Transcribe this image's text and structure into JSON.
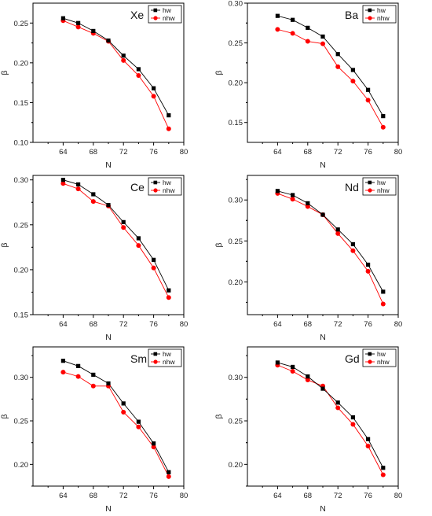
{
  "chart_data": [
    {
      "type": "line",
      "title": "Xe",
      "xlabel": "N",
      "ylabel": "β",
      "xlim": [
        60,
        80
      ],
      "ylim": [
        0.1,
        0.275
      ],
      "xticks": [
        64,
        68,
        72,
        76,
        80
      ],
      "xtick_labels": [
        "64",
        "68",
        "72",
        "76",
        "80"
      ],
      "yticks": [
        0.1,
        0.15,
        0.2,
        0.25
      ],
      "ytick_labels": [
        "0.10",
        "0.15",
        "0.20",
        "0.25"
      ],
      "x": [
        64,
        66,
        68,
        70,
        72,
        74,
        76,
        78
      ],
      "series": [
        {
          "name": "hw",
          "marker": "square",
          "color": "#000000",
          "values": [
            0.256,
            0.25,
            0.24,
            0.228,
            0.209,
            0.192,
            0.168,
            0.134
          ]
        },
        {
          "name": "nhw",
          "marker": "circle",
          "color": "#ff0000",
          "values": [
            0.253,
            0.245,
            0.237,
            0.227,
            0.203,
            0.184,
            0.158,
            0.117
          ]
        }
      ],
      "legend": "top-right",
      "grid": false
    },
    {
      "type": "line",
      "title": "Ba",
      "xlabel": "N",
      "ylabel": "β",
      "xlim": [
        60,
        80
      ],
      "ylim": [
        0.125,
        0.3
      ],
      "xticks": [
        64,
        68,
        72,
        76,
        80
      ],
      "xtick_labels": [
        "64",
        "68",
        "72",
        "76",
        "80"
      ],
      "yticks": [
        0.15,
        0.2,
        0.25,
        0.3
      ],
      "ytick_labels": [
        "0.15",
        "0.20",
        "0.25",
        "0.30"
      ],
      "x": [
        64,
        66,
        68,
        70,
        72,
        74,
        76,
        78
      ],
      "series": [
        {
          "name": "hw",
          "marker": "square",
          "color": "#000000",
          "values": [
            0.284,
            0.279,
            0.269,
            0.258,
            0.236,
            0.216,
            0.191,
            0.158
          ]
        },
        {
          "name": "nhw",
          "marker": "circle",
          "color": "#ff0000",
          "values": [
            0.267,
            0.262,
            0.252,
            0.249,
            0.22,
            0.202,
            0.178,
            0.144
          ]
        }
      ],
      "legend": "top-right",
      "grid": false
    },
    {
      "type": "line",
      "title": "Ce",
      "xlabel": "N",
      "ylabel": "β",
      "xlim": [
        60,
        80
      ],
      "ylim": [
        0.15,
        0.305
      ],
      "xticks": [
        64,
        68,
        72,
        76,
        80
      ],
      "xtick_labels": [
        "64",
        "68",
        "72",
        "76",
        "80"
      ],
      "yticks": [
        0.15,
        0.2,
        0.25,
        0.3
      ],
      "ytick_labels": [
        "0.15",
        "0.20",
        "0.25",
        "0.30"
      ],
      "x": [
        64,
        66,
        68,
        70,
        72,
        74,
        76,
        78
      ],
      "series": [
        {
          "name": "hw",
          "marker": "square",
          "color": "#000000",
          "values": [
            0.3,
            0.295,
            0.284,
            0.272,
            0.253,
            0.235,
            0.211,
            0.177
          ]
        },
        {
          "name": "nhw",
          "marker": "circle",
          "color": "#ff0000",
          "values": [
            0.296,
            0.29,
            0.276,
            0.271,
            0.247,
            0.227,
            0.202,
            0.169
          ]
        }
      ],
      "legend": "top-right",
      "grid": false
    },
    {
      "type": "line",
      "title": "Nd",
      "xlabel": "N",
      "ylabel": "β",
      "xlim": [
        60,
        80
      ],
      "ylim": [
        0.16,
        0.33
      ],
      "xticks": [
        64,
        68,
        72,
        76,
        80
      ],
      "xtick_labels": [
        "64",
        "68",
        "72",
        "76",
        "80"
      ],
      "yticks": [
        0.2,
        0.25,
        0.3
      ],
      "ytick_labels": [
        "0.20",
        "0.25",
        "0.30"
      ],
      "x": [
        64,
        66,
        68,
        70,
        72,
        74,
        76,
        78
      ],
      "series": [
        {
          "name": "hw",
          "marker": "square",
          "color": "#000000",
          "values": [
            0.311,
            0.306,
            0.296,
            0.282,
            0.264,
            0.246,
            0.221,
            0.188
          ]
        },
        {
          "name": "nhw",
          "marker": "circle",
          "color": "#ff0000",
          "values": [
            0.308,
            0.301,
            0.292,
            0.282,
            0.259,
            0.238,
            0.213,
            0.173
          ]
        }
      ],
      "legend": "top-right",
      "grid": false
    },
    {
      "type": "line",
      "title": "Sm",
      "xlabel": "N",
      "ylabel": "β",
      "xlim": [
        60,
        80
      ],
      "ylim": [
        0.175,
        0.335
      ],
      "xticks": [
        64,
        68,
        72,
        76,
        80
      ],
      "xtick_labels": [
        "64",
        "68",
        "72",
        "76",
        "80"
      ],
      "yticks": [
        0.2,
        0.25,
        0.3
      ],
      "ytick_labels": [
        "0.20",
        "0.25",
        "0.30"
      ],
      "x": [
        64,
        66,
        68,
        70,
        72,
        74,
        76,
        78
      ],
      "series": [
        {
          "name": "hw",
          "marker": "square",
          "color": "#000000",
          "values": [
            0.319,
            0.313,
            0.303,
            0.293,
            0.27,
            0.249,
            0.224,
            0.191
          ]
        },
        {
          "name": "nhw",
          "marker": "circle",
          "color": "#ff0000",
          "values": [
            0.306,
            0.301,
            0.29,
            0.29,
            0.26,
            0.243,
            0.22,
            0.186
          ]
        }
      ],
      "legend": "top-right",
      "grid": false
    },
    {
      "type": "line",
      "title": "Gd",
      "xlabel": "N",
      "ylabel": "β",
      "xlim": [
        60,
        80
      ],
      "ylim": [
        0.175,
        0.335
      ],
      "xticks": [
        64,
        68,
        72,
        76,
        80
      ],
      "xtick_labels": [
        "64",
        "68",
        "72",
        "76",
        "80"
      ],
      "yticks": [
        0.2,
        0.25,
        0.3
      ],
      "ytick_labels": [
        "0.20",
        "0.25",
        "0.30"
      ],
      "x": [
        64,
        66,
        68,
        70,
        72,
        74,
        76,
        78
      ],
      "series": [
        {
          "name": "hw",
          "marker": "square",
          "color": "#000000",
          "values": [
            0.317,
            0.312,
            0.301,
            0.287,
            0.271,
            0.254,
            0.229,
            0.196
          ]
        },
        {
          "name": "nhw",
          "marker": "circle",
          "color": "#ff0000",
          "values": [
            0.314,
            0.307,
            0.297,
            0.29,
            0.265,
            0.246,
            0.221,
            0.188
          ]
        }
      ],
      "legend": "top-right",
      "grid": false
    }
  ]
}
